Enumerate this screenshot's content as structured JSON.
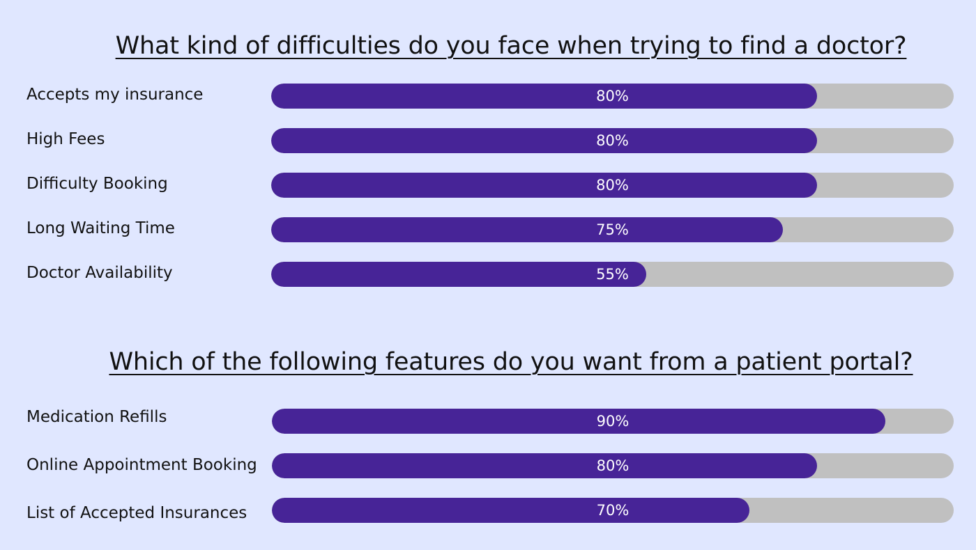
{
  "colors": {
    "background": "#e0e7ff",
    "bar_fill": "#472497",
    "bar_track": "#c0c0c0",
    "label_text": "#ffffff"
  },
  "chart_data": [
    {
      "type": "bar",
      "orientation": "horizontal",
      "title": "What kind of difficulties do you face when trying to find a doctor?",
      "categories": [
        "Accepts my insurance",
        "High Fees",
        "Difficulty Booking",
        "Long Waiting Time",
        "Doctor Availability"
      ],
      "values": [
        80,
        80,
        80,
        75,
        55
      ],
      "value_labels": [
        "80%",
        "80%",
        "80%",
        "75%",
        "55%"
      ],
      "xlim": [
        0,
        100
      ],
      "grid": false
    },
    {
      "type": "bar",
      "orientation": "horizontal",
      "title": "Which of the following features do you want from a patient portal?",
      "categories": [
        "Medication Refills",
        "Online Appointment Booking",
        "List of Accepted Insurances"
      ],
      "values": [
        90,
        80,
        70
      ],
      "value_labels": [
        "90%",
        "80%",
        "70%"
      ],
      "xlim": [
        0,
        100
      ],
      "grid": false
    }
  ]
}
